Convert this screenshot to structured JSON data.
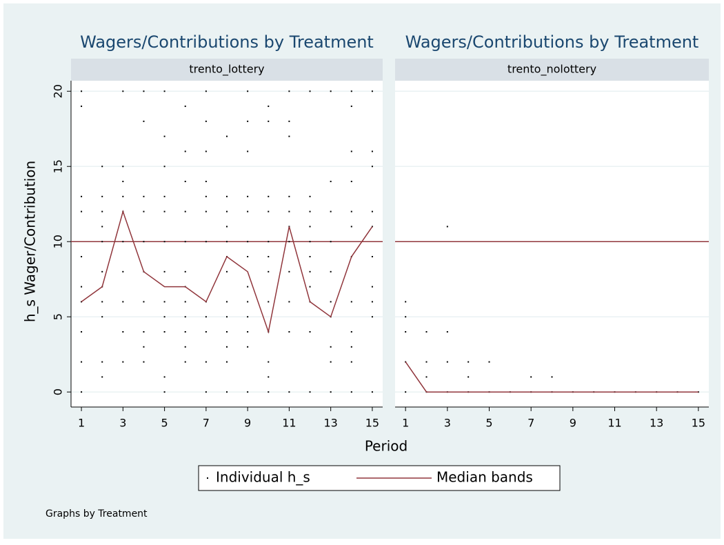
{
  "figure": {
    "xlabel": "Period",
    "ylabel": "h_s Wager/Contribution",
    "note": "Graphs by Treatment"
  },
  "chart_data": [
    {
      "type": "scatter",
      "title": "Wagers/Contributions by Treatment",
      "subtitle": "trento_lottery",
      "xlim": [
        0.5,
        15.5
      ],
      "ylim": [
        -1,
        20.7
      ],
      "xticks": [
        1,
        3,
        5,
        7,
        9,
        11,
        13,
        15
      ],
      "yticks": [
        0,
        5,
        10,
        15,
        20
      ],
      "grid": true,
      "yline": 10,
      "yline_color": "#90353b",
      "series": [
        {
          "name": "Individual h_s",
          "mode": "markers",
          "color": "#000000",
          "x": [
            1,
            1,
            1,
            1,
            1,
            1,
            1,
            1,
            1,
            1,
            2,
            2,
            2,
            2,
            2,
            2,
            2,
            2,
            2,
            2,
            2,
            3,
            3,
            3,
            3,
            3,
            3,
            3,
            3,
            3,
            3,
            4,
            4,
            4,
            4,
            4,
            4,
            4,
            4,
            4,
            4,
            5,
            5,
            5,
            5,
            5,
            5,
            5,
            5,
            5,
            5,
            5,
            5,
            6,
            6,
            6,
            6,
            6,
            6,
            6,
            6,
            6,
            6,
            6,
            6,
            7,
            7,
            7,
            7,
            7,
            7,
            7,
            7,
            7,
            7,
            7,
            7,
            8,
            8,
            8,
            8,
            8,
            8,
            8,
            8,
            8,
            8,
            8,
            8,
            8,
            9,
            9,
            9,
            9,
            9,
            9,
            9,
            9,
            9,
            9,
            9,
            9,
            9,
            10,
            10,
            10,
            10,
            10,
            10,
            10,
            10,
            10,
            10,
            10,
            10,
            11,
            11,
            11,
            11,
            11,
            11,
            11,
            11,
            11,
            11,
            11,
            12,
            12,
            12,
            12,
            12,
            12,
            12,
            12,
            12,
            12,
            12,
            13,
            13,
            13,
            13,
            13,
            13,
            13,
            13,
            13,
            13,
            14,
            14,
            14,
            14,
            14,
            14,
            14,
            14,
            14,
            14,
            14,
            14,
            15,
            15,
            15,
            15,
            15,
            15,
            15,
            15,
            15,
            15
          ],
          "values": [
            0,
            2,
            4,
            6,
            7,
            9,
            12,
            13,
            19,
            20,
            1,
            2,
            5,
            6,
            7,
            8,
            10,
            11,
            12,
            13,
            15,
            2,
            4,
            6,
            8,
            10,
            12,
            13,
            14,
            15,
            20,
            2,
            3,
            4,
            6,
            8,
            10,
            12,
            13,
            18,
            20,
            0,
            1,
            4,
            5,
            6,
            8,
            10,
            12,
            13,
            15,
            17,
            20,
            2,
            3,
            4,
            5,
            6,
            7,
            8,
            10,
            12,
            14,
            16,
            19,
            0,
            2,
            4,
            5,
            6,
            10,
            12,
            13,
            14,
            16,
            18,
            20,
            0,
            2,
            3,
            4,
            5,
            6,
            8,
            9,
            10,
            11,
            12,
            13,
            17,
            0,
            3,
            4,
            5,
            6,
            7,
            9,
            10,
            12,
            13,
            16,
            18,
            20,
            0,
            1,
            2,
            4,
            6,
            8,
            9,
            10,
            12,
            13,
            18,
            19,
            0,
            4,
            6,
            8,
            10,
            11,
            12,
            13,
            17,
            18,
            20,
            0,
            4,
            6,
            7,
            8,
            9,
            10,
            11,
            12,
            13,
            20,
            0,
            2,
            3,
            5,
            6,
            8,
            10,
            12,
            14,
            20,
            0,
            2,
            3,
            4,
            6,
            9,
            11,
            12,
            14,
            16,
            19,
            20,
            0,
            5,
            6,
            7,
            9,
            11,
            12,
            15,
            16,
            20
          ]
        },
        {
          "name": "Median bands",
          "mode": "line",
          "color": "#90353b",
          "x": [
            1,
            2,
            3,
            4,
            5,
            6,
            7,
            8,
            9,
            10,
            11,
            12,
            13,
            14,
            15
          ],
          "values": [
            6,
            7,
            12,
            8,
            7,
            7,
            6,
            9,
            8,
            4,
            11,
            6,
            5,
            9,
            11
          ]
        }
      ]
    },
    {
      "type": "scatter",
      "title": "Wagers/Contributions by Treatment",
      "subtitle": "trento_nolottery",
      "xlim": [
        0.5,
        15.5
      ],
      "ylim": [
        -1,
        20.7
      ],
      "xticks": [
        1,
        3,
        5,
        7,
        9,
        11,
        13,
        15
      ],
      "yticks": [
        0,
        5,
        10,
        15,
        20
      ],
      "grid": true,
      "yline": 10,
      "yline_color": "#90353b",
      "series": [
        {
          "name": "Individual h_s",
          "mode": "markers",
          "color": "#000000",
          "x": [
            1,
            1,
            1,
            1,
            1,
            2,
            2,
            2,
            2,
            3,
            3,
            3,
            3,
            4,
            4,
            4,
            5,
            5,
            6,
            7,
            7,
            8,
            8,
            9,
            10,
            11,
            12,
            13,
            14,
            15
          ],
          "values": [
            0,
            2,
            4,
            5,
            6,
            0,
            1,
            2,
            4,
            0,
            2,
            4,
            11,
            0,
            1,
            2,
            0,
            2,
            0,
            0,
            1,
            0,
            1,
            0,
            0,
            0,
            0,
            0,
            0,
            0
          ]
        },
        {
          "name": "Median bands",
          "mode": "line",
          "color": "#90353b",
          "x": [
            1,
            2,
            3,
            4,
            5,
            6,
            7,
            8,
            9,
            10,
            11,
            12,
            13,
            14,
            15
          ],
          "values": [
            2,
            0,
            0,
            0,
            0,
            0,
            0,
            0,
            0,
            0,
            0,
            0,
            0,
            0,
            0
          ]
        }
      ]
    }
  ]
}
